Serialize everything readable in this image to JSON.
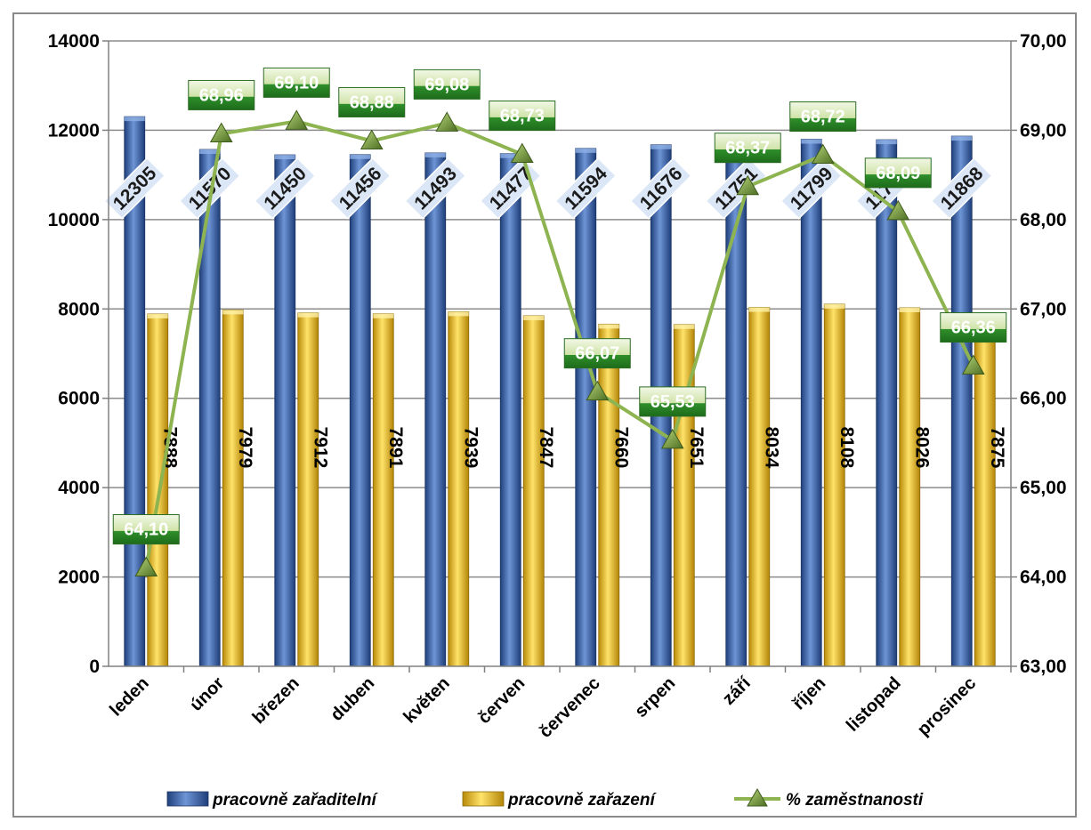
{
  "chart_data": {
    "type": "bar",
    "categories": [
      "leden",
      "únor",
      "březen",
      "duben",
      "květen",
      "červen",
      "červenec",
      "srpen",
      "září",
      "říjen",
      "listopad",
      "prosinec"
    ],
    "series": [
      {
        "name": "pracovně zařaditelní",
        "kind": "bar",
        "axis": "left",
        "color": "#3d68b5",
        "values": [
          12305,
          11570,
          11450,
          11456,
          11493,
          11477,
          11594,
          11676,
          11751,
          11799,
          11788,
          11868
        ],
        "labels": [
          "12305",
          "11570",
          "11450",
          "11456",
          "11493",
          "11477",
          "11594",
          "11676",
          "11751",
          "11799",
          "11788",
          "11868"
        ]
      },
      {
        "name": "pracovně zařazení",
        "kind": "bar",
        "axis": "left",
        "color": "#f3c521",
        "values": [
          7888,
          7979,
          7912,
          7891,
          7939,
          7847,
          7660,
          7651,
          8034,
          8108,
          8026,
          7875
        ],
        "labels": [
          "7888",
          "7979",
          "7912",
          "7891",
          "7939",
          "7847",
          "7660",
          "7651",
          "8034",
          "8108",
          "8026",
          "7875"
        ]
      },
      {
        "name": "% zaměstnanosti",
        "kind": "line",
        "axis": "right",
        "color": "#8db450",
        "values": [
          64.1,
          68.96,
          69.1,
          68.88,
          69.08,
          68.73,
          66.07,
          65.53,
          68.37,
          68.72,
          68.09,
          66.36
        ],
        "labels": [
          "64,10",
          "68,96",
          "69,10",
          "68,88",
          "69,08",
          "68,73",
          "66,07",
          "65,53",
          "68,37",
          "68,72",
          "68,09",
          "66,36"
        ]
      }
    ],
    "y_left": {
      "min": 0,
      "max": 14000,
      "ticks": [
        "0",
        "2000",
        "4000",
        "6000",
        "8000",
        "10000",
        "12000",
        "14000"
      ]
    },
    "y_right": {
      "min": 63,
      "max": 70,
      "ticks": [
        "63,00",
        "64,00",
        "65,00",
        "66,00",
        "67,00",
        "68,00",
        "69,00",
        "70,00"
      ]
    },
    "grid": true,
    "legend": "bottom"
  }
}
